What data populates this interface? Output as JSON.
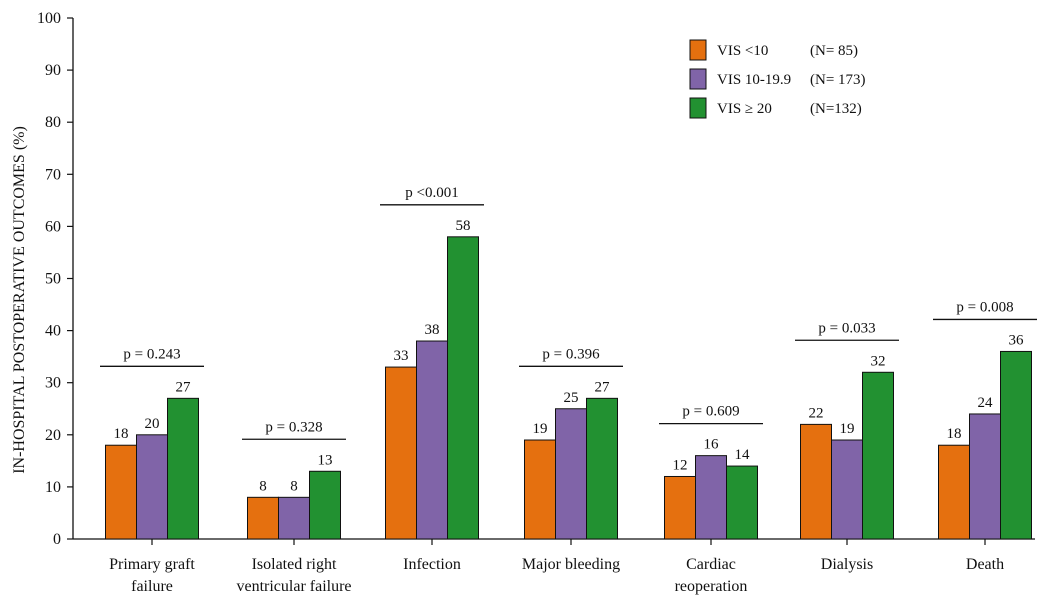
{
  "chart_data": {
    "type": "bar",
    "title": "",
    "xlabel": "",
    "ylabel": "IN-HOSPITAL POSTOPERATIVE OUTCOMES (%)",
    "ylim": [
      0,
      100
    ],
    "yticks": [
      0,
      10,
      20,
      30,
      40,
      50,
      60,
      70,
      80,
      90,
      100
    ],
    "grid": false,
    "legend_position": "top-right",
    "categories": [
      [
        "Primary graft",
        "failure"
      ],
      [
        "Isolated right",
        "ventricular failure"
      ],
      [
        "Infection"
      ],
      [
        "Major bleeding"
      ],
      [
        "Cardiac",
        "reoperation"
      ],
      [
        "Dialysis"
      ],
      [
        "Death"
      ]
    ],
    "series": [
      {
        "name": "VIS <10",
        "n_label": "(N= 85)",
        "color": "#e5700f",
        "values": [
          18,
          8,
          33,
          19,
          12,
          22,
          18
        ]
      },
      {
        "name": "VIS 10-19.9",
        "n_label": "(N= 173)",
        "color": "#8064a8",
        "values": [
          20,
          8,
          38,
          25,
          16,
          19,
          24
        ]
      },
      {
        "name": "VIS ≥ 20",
        "n_label": "(N=132)",
        "color": "#229131",
        "values": [
          27,
          13,
          58,
          27,
          14,
          32,
          36
        ]
      }
    ],
    "p_values": [
      "p = 0.243",
      "p = 0.328",
      "p <0.001",
      "p = 0.396",
      "p = 0.609",
      "p = 0.033",
      "p = 0.008"
    ]
  }
}
